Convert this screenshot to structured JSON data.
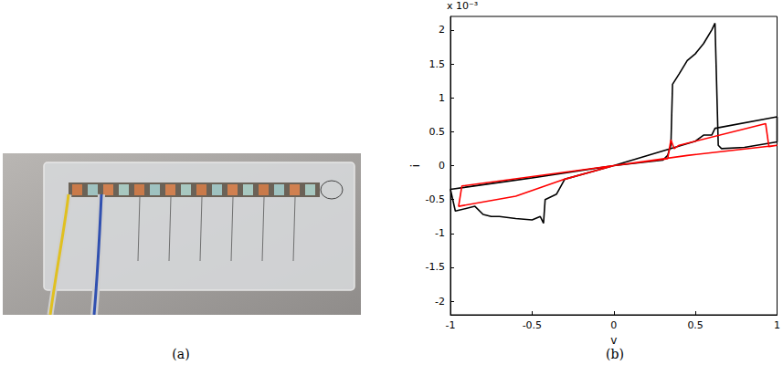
{
  "panel_labels": [
    "(a)",
    "(b)"
  ],
  "chart_data": {
    "type": "line",
    "x_label": "v",
    "y_label": "i",
    "annotations": [
      "x 10⁻³"
    ],
    "xlim": [
      -1,
      1
    ],
    "xticks": [
      -1,
      -0.5,
      0,
      0.5,
      1
    ],
    "ylim": [
      -2.2,
      2.2
    ],
    "yticks": [
      -2,
      -1.5,
      -1,
      -0.5,
      0,
      0.5,
      1,
      1.5,
      2
    ],
    "grid": false,
    "series": [
      {
        "color": "#000000",
        "x": [
          0,
          0.3,
          0.33,
          0.35,
          0.36,
          0.4,
          0.45,
          0.5,
          0.55,
          0.6,
          0.62,
          0.64,
          0.66,
          0.8,
          1,
          1,
          0.62,
          0.6,
          0.55,
          0.5,
          0,
          -0.5,
          -1,
          -0.97,
          -0.85,
          -0.8,
          -0.75,
          -0.7,
          -0.6,
          -0.5,
          -0.45,
          -0.43,
          -0.42,
          -0.35,
          -0.3,
          0
        ],
        "values": [
          0,
          0.08,
          0.15,
          0.3,
          1.2,
          1.35,
          1.55,
          1.65,
          1.8,
          2.0,
          2.1,
          0.3,
          0.25,
          0.27,
          0.35,
          0.72,
          0.55,
          0.45,
          0.45,
          0.36,
          0,
          -0.18,
          -0.35,
          -0.67,
          -0.6,
          -0.72,
          -0.75,
          -0.75,
          -0.78,
          -0.8,
          -0.75,
          -0.85,
          -0.5,
          -0.42,
          -0.2,
          0
        ]
      },
      {
        "color": "#ff0000",
        "x": [
          0,
          0.33,
          0.35,
          0.37,
          0.4,
          0.93,
          0.95,
          1,
          0.45,
          0,
          -0.93,
          -0.95,
          -0.6,
          -0.3,
          0
        ],
        "values": [
          0,
          0.1,
          0.38,
          0.25,
          0.3,
          0.62,
          0.28,
          0.3,
          0.15,
          0,
          -0.3,
          -0.6,
          -0.45,
          -0.2,
          0
        ]
      }
    ]
  }
}
